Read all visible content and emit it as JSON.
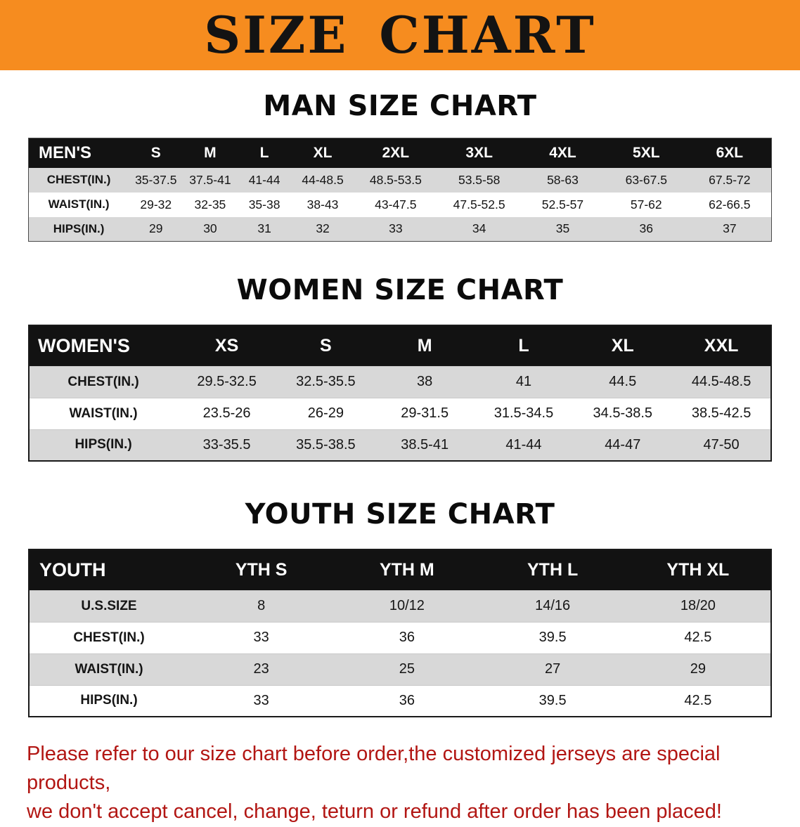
{
  "banner": {
    "title": "SIZE CHART",
    "bg_color": "#F68C1F",
    "text_color": "#131313"
  },
  "sections": [
    {
      "heading": "MAN SIZE CHART",
      "table": {
        "header": [
          "MEN'S",
          "S",
          "M",
          "L",
          "XL",
          "2XL",
          "3XL",
          "4XL",
          "5XL",
          "6XL"
        ],
        "rows": [
          [
            "CHEST(IN.)",
            "35-37.5",
            "37.5-41",
            "41-44",
            "44-48.5",
            "48.5-53.5",
            "53.5-58",
            "58-63",
            "63-67.5",
            "67.5-72"
          ],
          [
            "WAIST(IN.)",
            "29-32",
            "32-35",
            "35-38",
            "38-43",
            "43-47.5",
            "47.5-52.5",
            "52.5-57",
            "57-62",
            "62-66.5"
          ],
          [
            "HIPS(IN.)",
            "29",
            "30",
            "31",
            "32",
            "33",
            "34",
            "35",
            "36",
            "37"
          ]
        ]
      }
    },
    {
      "heading": "WOMEN SIZE CHART",
      "table": {
        "header": [
          "WOMEN'S",
          "XS",
          "S",
          "M",
          "L",
          "XL",
          "XXL"
        ],
        "rows": [
          [
            "CHEST(IN.)",
            "29.5-32.5",
            "32.5-35.5",
            "38",
            "41",
            "44.5",
            "44.5-48.5"
          ],
          [
            "WAIST(IN.)",
            "23.5-26",
            "26-29",
            "29-31.5",
            "31.5-34.5",
            "34.5-38.5",
            "38.5-42.5"
          ],
          [
            "HIPS(IN.)",
            "33-35.5",
            "35.5-38.5",
            "38.5-41",
            "41-44",
            "44-47",
            "47-50"
          ]
        ]
      }
    },
    {
      "heading": "YOUTH SIZE CHART",
      "table": {
        "header": [
          "YOUTH",
          "YTH S",
          "YTH M",
          "YTH L",
          "YTH XL"
        ],
        "rows": [
          [
            "U.S.SIZE",
            "8",
            "10/12",
            "14/16",
            "18/20"
          ],
          [
            "CHEST(IN.)",
            "33",
            "36",
            "39.5",
            "42.5"
          ],
          [
            "WAIST(IN.)",
            "23",
            "25",
            "27",
            "29"
          ],
          [
            "HIPS(IN.)",
            "33",
            "36",
            "39.5",
            "42.5"
          ]
        ]
      }
    }
  ],
  "notice": {
    "line1": "Please refer to our size chart before order,the customized jerseys are special products,",
    "line2": "we don't accept cancel, change, teturn or refund after order has been placed!",
    "color": "#b21613"
  },
  "colors": {
    "banner_orange": "#F68C1F",
    "table_header_black": "#121212",
    "row_stripe_gray": "#d8d8d8",
    "notice_red": "#b21613"
  }
}
